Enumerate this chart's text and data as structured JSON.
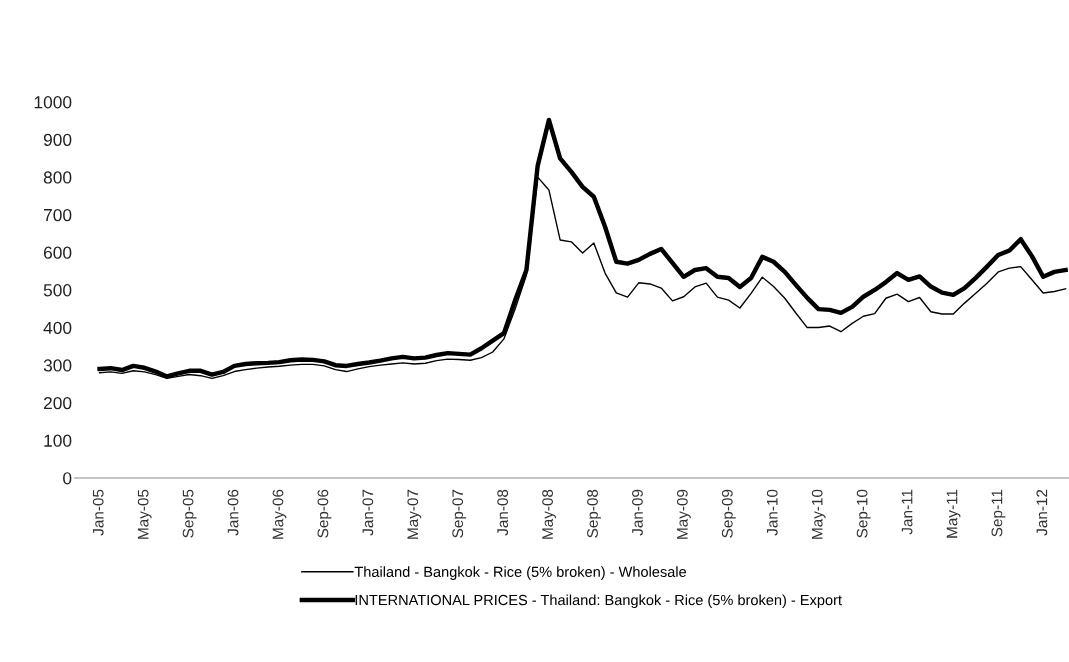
{
  "chart_data": {
    "type": "line",
    "categories": [
      "Jan-05",
      null,
      null,
      null,
      "May-05",
      null,
      null,
      null,
      "Sep-05",
      null,
      null,
      null,
      "Jan-06",
      null,
      null,
      null,
      "May-06",
      null,
      null,
      null,
      "Sep-06",
      null,
      null,
      null,
      "Jan-07",
      null,
      null,
      null,
      "May-07",
      null,
      null,
      null,
      "Sep-07",
      null,
      null,
      null,
      "Jan-08",
      null,
      null,
      null,
      "May-08",
      null,
      null,
      null,
      "Sep-08",
      null,
      null,
      null,
      "Jan-09",
      null,
      null,
      null,
      "May-09",
      null,
      null,
      null,
      "Sep-09",
      null,
      null,
      null,
      "Jan-10",
      null,
      null,
      null,
      "May-10",
      null,
      null,
      null,
      "Sep-10",
      null,
      null,
      null,
      "Jan-11",
      null,
      null,
      null,
      "May-11",
      null,
      null,
      null,
      "Sep-11",
      null,
      null,
      null,
      "Jan-12",
      null,
      null
    ],
    "series": [
      {
        "name": "Thailand - Bangkok - Rice (5% broken) - Wholesale",
        "color": "#000000",
        "values": [
          280,
          282,
          278,
          285,
          282,
          275,
          265,
          270,
          275,
          272,
          265,
          272,
          283,
          288,
          292,
          295,
          297,
          300,
          302,
          302,
          298,
          288,
          283,
          290,
          296,
          300,
          303,
          306,
          303,
          305,
          312,
          316,
          315,
          313,
          320,
          335,
          370,
          450,
          540,
          800,
          766,
          633,
          628,
          598,
          625,
          545,
          492,
          481,
          519,
          516,
          505,
          471,
          482,
          508,
          518,
          481,
          473,
          452,
          491,
          534,
          509,
          478,
          438,
          400,
          400,
          404,
          389,
          411,
          430,
          437,
          478,
          489,
          469,
          480,
          442,
          436,
          436,
          465,
          491,
          518,
          548,
          558,
          562,
          527,
          492,
          496,
          503
        ]
      },
      {
        "name": "INTERNATIONAL PRICES - Thailand: Bangkok - Rice (5% broken) - Export",
        "color": "#000000",
        "values": [
          290,
          292,
          287,
          298,
          293,
          283,
          270,
          278,
          285,
          285,
          275,
          282,
          298,
          303,
          305,
          306,
          308,
          313,
          315,
          314,
          310,
          300,
          298,
          303,
          307,
          312,
          318,
          322,
          318,
          320,
          327,
          332,
          330,
          328,
          345,
          365,
          385,
          473,
          553,
          830,
          952,
          850,
          814,
          774,
          748,
          668,
          575,
          570,
          580,
          596,
          609,
          572,
          535,
          553,
          558,
          535,
          532,
          508,
          532,
          588,
          575,
          548,
          513,
          479,
          449,
          447,
          439,
          455,
          482,
          500,
          521,
          545,
          527,
          536,
          509,
          493,
          487,
          505,
          532,
          562,
          593,
          605,
          635,
          590,
          535,
          548,
          553
        ]
      }
    ],
    "ylim": [
      0,
      1000
    ],
    "yticks": [
      0,
      100,
      200,
      300,
      400,
      500,
      600,
      700,
      800,
      900,
      1000
    ],
    "grid": false,
    "legend": "bottom",
    "marker": "none",
    "line_style": "solid"
  }
}
